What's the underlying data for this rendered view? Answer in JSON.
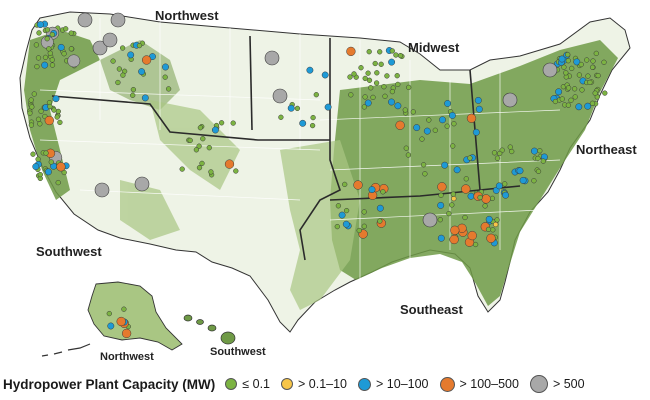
{
  "regions": {
    "northwest": "Northwest",
    "midwest": "Midwest",
    "northeast": "Northeast",
    "southwest": "Southwest",
    "southeast": "Southeast",
    "ak_northwest": "Northwest",
    "hi_southwest": "Southwest"
  },
  "legend": {
    "title": "Hydropower Plant Capacity (MW)",
    "items": [
      {
        "label": "≤ 0.1",
        "color": "#7cb342"
      },
      {
        "label": "> 0.1–10",
        "color": "#f7c548"
      },
      {
        "label": "> 10–100",
        "color": "#1e9ad6"
      },
      {
        "label": "> 100–500",
        "color": "#e57a2e"
      },
      {
        "label": "> 500",
        "color": "#a8a8a8"
      }
    ]
  },
  "colors": {
    "land": "#eef3e6",
    "water_availability_high": "#6f9a46",
    "water_availability_mid": "#a9c683",
    "state_border": "#ffffff",
    "region_border": "#2b2b2b"
  }
}
